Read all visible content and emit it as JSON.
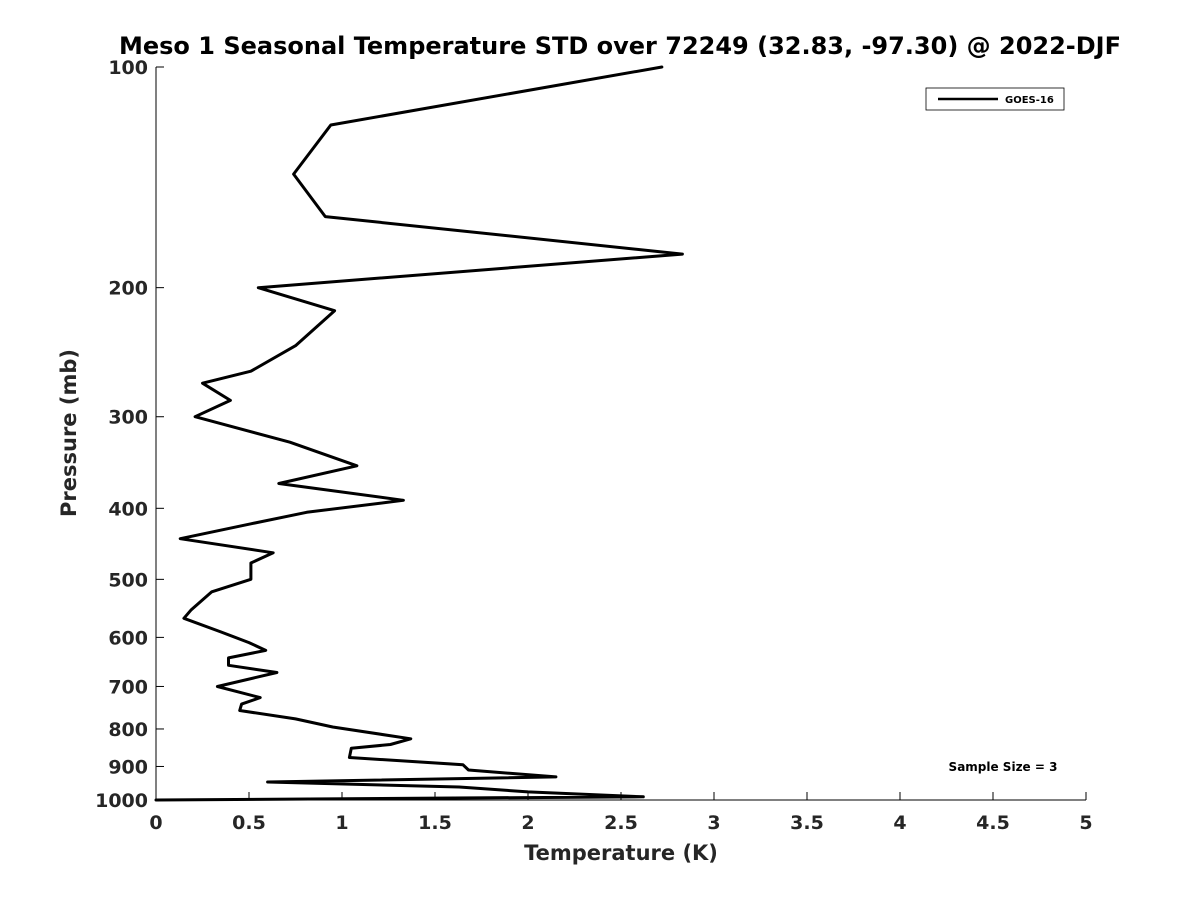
{
  "chart_data": {
    "type": "line",
    "title": "Meso 1 Seasonal Temperature STD over 72249 (32.83, -97.30) @ 2022-DJF",
    "xlabel": "Temperature (K)",
    "ylabel": "Pressure (mb)",
    "xlim": [
      0,
      5
    ],
    "ylim": [
      1000,
      100
    ],
    "y_scale": "log",
    "y_reversed": true,
    "grid": false,
    "legend_position": "top-right",
    "x_ticks": [
      "0",
      "0.5",
      "1",
      "1.5",
      "2",
      "2.5",
      "3",
      "3.5",
      "4",
      "4.5",
      "5"
    ],
    "y_ticks": [
      "100",
      "200",
      "300",
      "400",
      "500",
      "600",
      "700",
      "800",
      "900",
      "1000"
    ],
    "series": [
      {
        "name": "GOES-16",
        "color": "#000000",
        "x": [
          2.72,
          0.94,
          0.74,
          0.91,
          2.83,
          0.55,
          0.96,
          0.75,
          0.51,
          0.25,
          0.4,
          0.21,
          0.72,
          1.08,
          0.66,
          1.33,
          0.81,
          0.51,
          0.13,
          0.63,
          0.51,
          0.51,
          0.3,
          0.19,
          0.15,
          0.35,
          0.5,
          0.59,
          0.39,
          0.39,
          0.65,
          0.33,
          0.56,
          0.46,
          0.45,
          0.75,
          0.95,
          1.37,
          1.26,
          1.05,
          1.04,
          1.65,
          1.68,
          2.15,
          0.6,
          1.63,
          2.0,
          2.62,
          0.0
        ],
        "y": [
          100,
          120,
          140,
          160,
          180,
          200,
          215,
          240,
          260,
          270,
          285,
          300,
          325,
          350,
          370,
          390,
          405,
          420,
          440,
          460,
          475,
          500,
          520,
          550,
          565,
          590,
          610,
          625,
          640,
          655,
          670,
          700,
          725,
          740,
          755,
          775,
          795,
          825,
          840,
          850,
          875,
          895,
          910,
          930,
          945,
          960,
          975,
          990,
          1000
        ]
      }
    ],
    "annotations": [
      "Sample Size = 3"
    ]
  }
}
